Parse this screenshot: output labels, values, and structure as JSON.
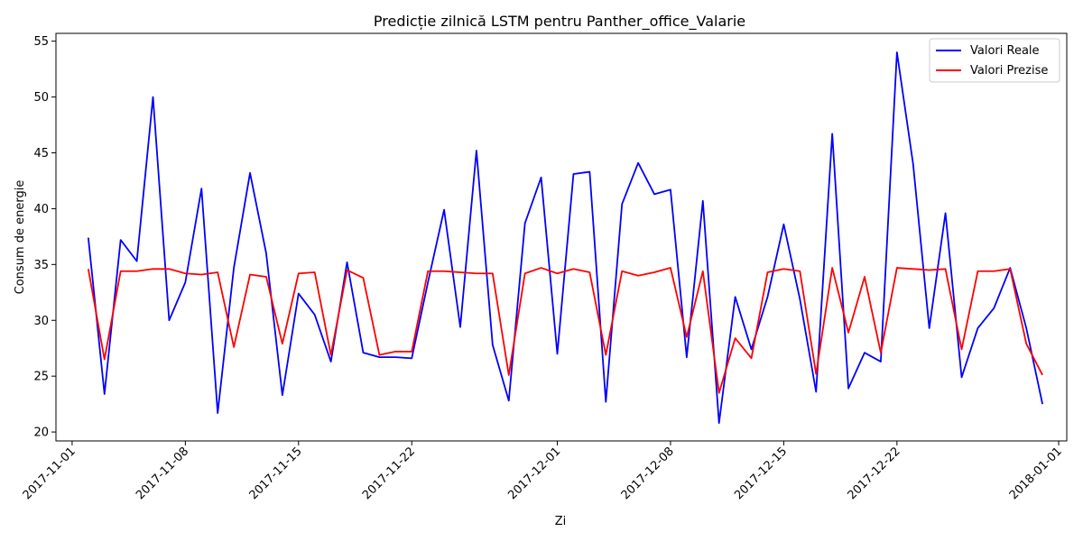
{
  "chart_data": {
    "type": "line",
    "title": "Predicție zilnică LSTM pentru Panther_office_Valarie",
    "xlabel": "Zi",
    "ylabel": "Consum de energie",
    "x_start": "2017-11-02",
    "x_ticks": [
      "2017-11-01",
      "2017-11-08",
      "2017-11-15",
      "2017-11-22",
      "2017-12-01",
      "2017-12-08",
      "2017-12-15",
      "2017-12-22",
      "2018-01-01"
    ],
    "y_ticks": [
      20,
      25,
      30,
      35,
      40,
      45,
      50,
      55
    ],
    "ylim": [
      19.2,
      55.7
    ],
    "xlim": [
      "2017-10-31",
      "2018-01-01"
    ],
    "grid": false,
    "legend_position": "top-right",
    "series": [
      {
        "name": "Valori Reale",
        "color": "#0000ff",
        "values": [
          37.4,
          23.4,
          37.2,
          35.3,
          50.0,
          30.0,
          33.4,
          41.8,
          21.7,
          34.7,
          43.2,
          36.0,
          23.3,
          32.4,
          30.5,
          26.3,
          35.2,
          27.1,
          26.7,
          26.7,
          26.6,
          33.4,
          39.9,
          29.4,
          45.2,
          27.8,
          22.8,
          38.7,
          42.8,
          27.0,
          43.1,
          43.3,
          22.7,
          40.4,
          44.1,
          41.3,
          41.7,
          26.7,
          40.7,
          20.8,
          32.1,
          27.4,
          32.1,
          38.6,
          31.9,
          23.6,
          46.7,
          23.9,
          27.1,
          26.3,
          54.0,
          44.0,
          29.3,
          39.6,
          24.9,
          29.3,
          31.1,
          34.7,
          29.3,
          22.5
        ]
      },
      {
        "name": "Valori Prezise",
        "color": "#ff0000",
        "values": [
          34.6,
          26.5,
          34.4,
          34.4,
          34.6,
          34.6,
          34.2,
          34.1,
          34.3,
          27.6,
          34.1,
          33.9,
          27.9,
          34.2,
          34.3,
          26.9,
          34.5,
          33.8,
          26.9,
          27.2,
          27.2,
          34.4,
          34.4,
          34.3,
          34.2,
          34.2,
          25.1,
          34.2,
          34.7,
          34.2,
          34.6,
          34.3,
          26.9,
          34.4,
          34.0,
          34.3,
          34.7,
          28.5,
          34.4,
          23.5,
          28.4,
          26.6,
          34.3,
          34.6,
          34.4,
          25.2,
          34.7,
          28.9,
          33.9,
          27.1,
          34.7,
          34.6,
          34.5,
          34.6,
          27.4,
          34.4,
          34.4,
          34.6,
          27.9,
          25.1
        ]
      }
    ]
  }
}
